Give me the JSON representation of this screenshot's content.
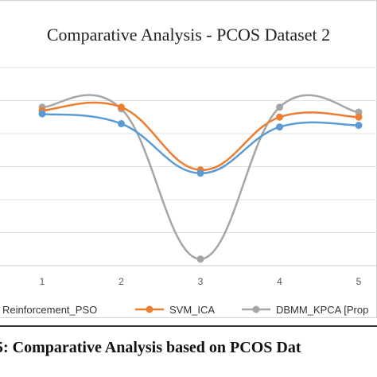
{
  "caption": "5: Comparative Analysis based on PCOS Dat",
  "chart_data": {
    "type": "line",
    "title": "Comparative Analysis  - PCOS Dataset 2",
    "x": [
      1,
      2,
      3,
      4,
      5
    ],
    "xticks": [
      "1",
      "2",
      "3",
      "4",
      "5"
    ],
    "ylim": [
      0,
      6
    ],
    "grid": true,
    "legend": "bottom",
    "series": [
      {
        "name": "Reinforcement_PSO",
        "values": [
          4.6,
          4.3,
          2.8,
          4.2,
          4.25
        ],
        "color": "#5b9bd5"
      },
      {
        "name": "SVM_ICA",
        "values": [
          4.7,
          4.8,
          2.9,
          4.5,
          4.5
        ],
        "color": "#ed7d31"
      },
      {
        "name": "DBMM_KPCA [Prop",
        "values": [
          4.8,
          4.75,
          0.2,
          4.8,
          4.65
        ],
        "color": "#a5a5a5"
      }
    ]
  }
}
